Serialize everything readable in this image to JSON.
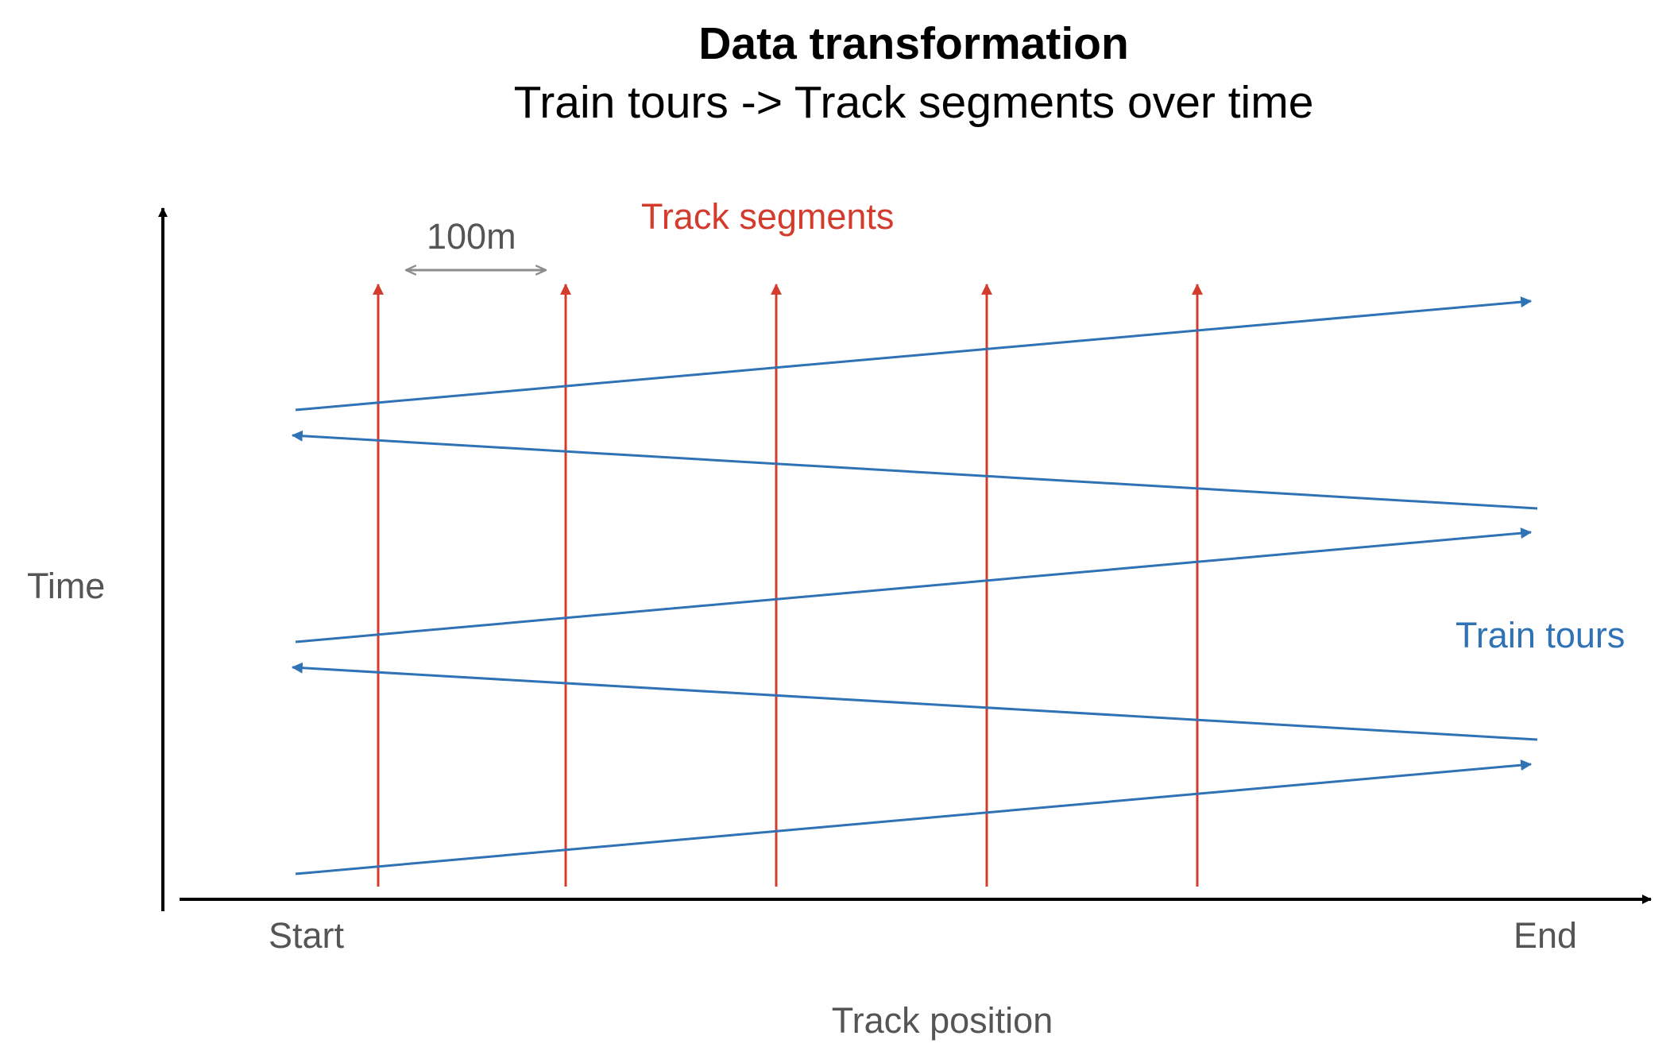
{
  "title": "Data transformation",
  "subtitle": "Train tours -> Track segments over time",
  "axes": {
    "y_label": "Time",
    "x_label": "Track position",
    "x_start_label": "Start",
    "x_end_label": "End"
  },
  "annotations": {
    "track_segments_label": "Track segments",
    "train_tours_label": "Train tours",
    "segment_spacing_label": "100m"
  },
  "colors": {
    "axis": "#000000",
    "title": "#000000",
    "label": "#555555",
    "track_segment": "#d33c2c",
    "train_tour": "#2f72b6",
    "dimension": "#8c8c8c"
  },
  "track_segment_count": 5,
  "train_tour_count": 5
}
